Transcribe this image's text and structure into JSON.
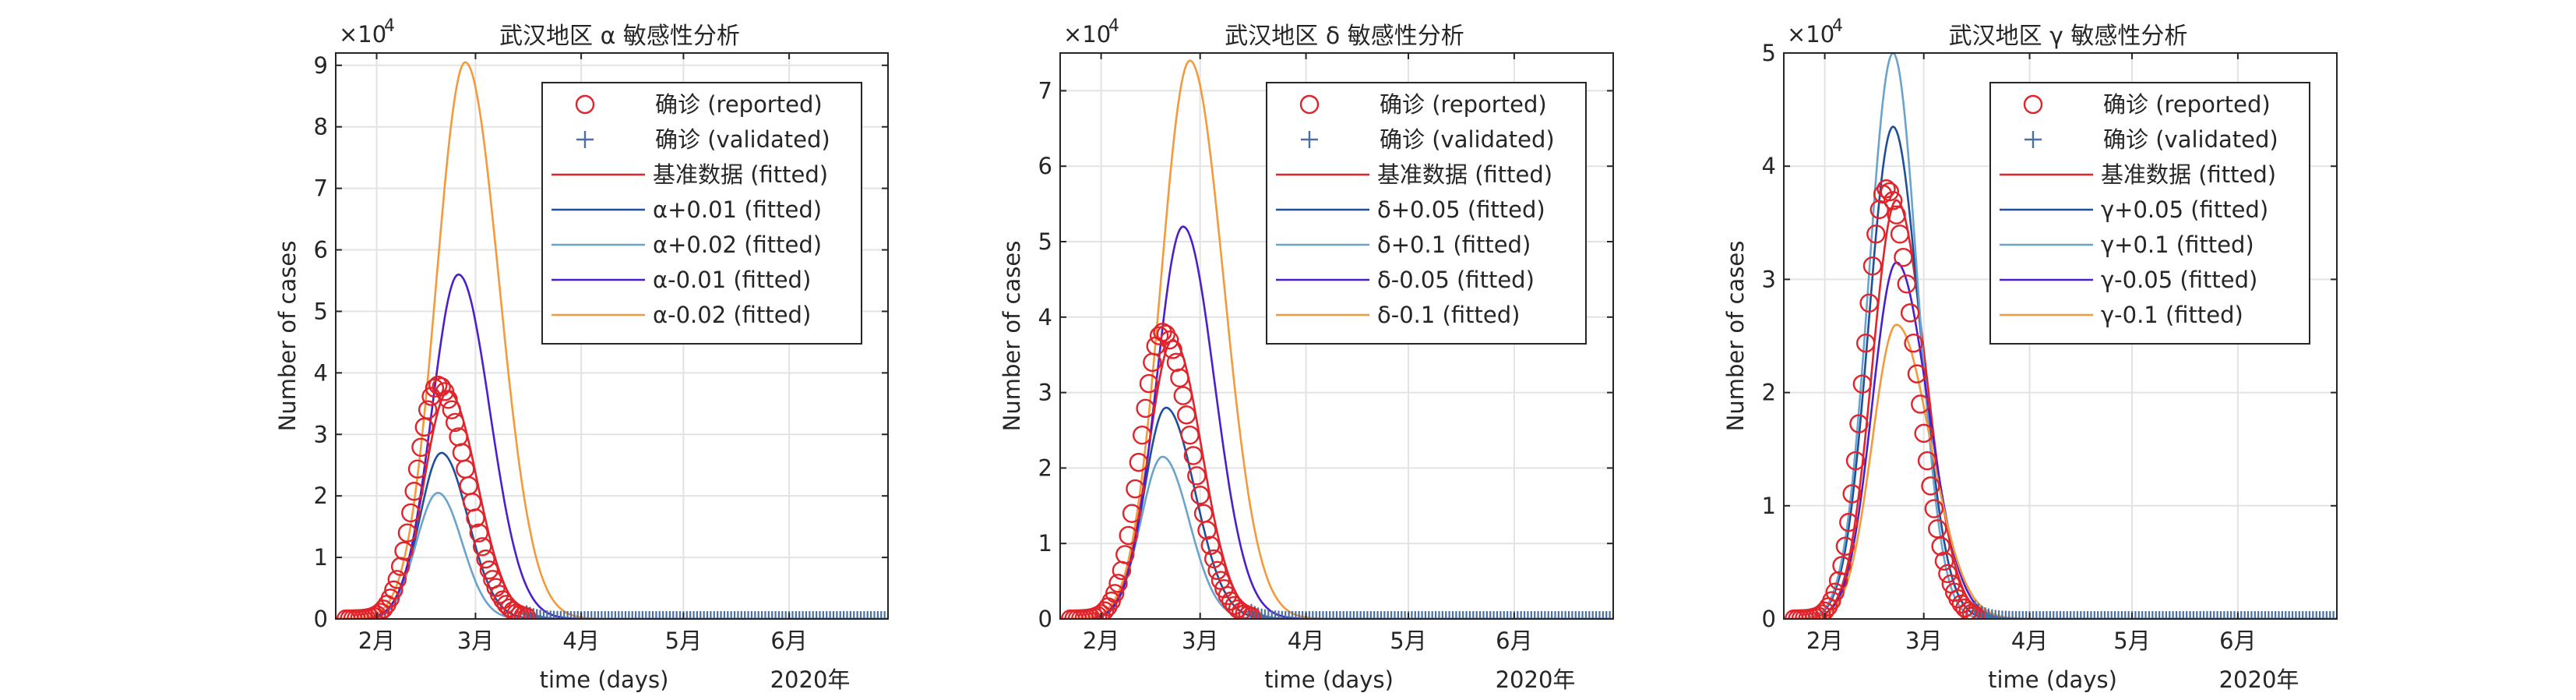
{
  "figure": {
    "year_label": "2020年",
    "xlabel": "time (days)",
    "ylabel": "Number of cases",
    "exponent_label": "×10",
    "exponent_power": "4"
  },
  "chart_data": [
    {
      "type": "line",
      "title": "武汉地区 α 敏感性分析",
      "xlabel": "time (days)",
      "ylabel": "Number of cases",
      "y_multiplier": "×10^4",
      "x_ticks": [
        "2月",
        "3月",
        "4月",
        "5月",
        "6月"
      ],
      "x_tick_dates": [
        "2020-02-01",
        "2020-03-01",
        "2020-04-01",
        "2020-05-01",
        "2020-06-01"
      ],
      "xlim": [
        "2020-01-20",
        "2020-06-30"
      ],
      "ylim": [
        0,
        9.2
      ],
      "yticks": [
        0,
        1,
        2,
        3,
        4,
        5,
        6,
        7,
        8,
        9
      ],
      "grid": true,
      "legend_position": "top-right",
      "legend": [
        {
          "label": "确诊 (reported)",
          "marker": "circle",
          "color": "#e0242b"
        },
        {
          "label": "确诊 (validated)",
          "marker": "plus",
          "color": "#4a6fa0"
        },
        {
          "label": "基准数据 (fitted)",
          "marker": "line",
          "color": "#e0242b"
        },
        {
          "label": "α+0.01 (fitted)",
          "marker": "line",
          "color": "#1f4e9a"
        },
        {
          "label": "α+0.02 (fitted)",
          "marker": "line",
          "color": "#6aa3cc"
        },
        {
          "label": "α-0.01 (fitted)",
          "marker": "line",
          "color": "#4b1fcc"
        },
        {
          "label": "α-0.02 (fitted)",
          "marker": "line",
          "color": "#f39a3c"
        }
      ],
      "series": [
        {
          "name": "基准数据 (fitted)",
          "color": "#e0242b",
          "peak_date": "2020-02-22",
          "peak": 3.7,
          "rise_days": 10,
          "decay_days": 12
        },
        {
          "name": "α+0.01 (fitted)",
          "color": "#1f4e9a",
          "peak_date": "2020-02-20",
          "peak": 2.7,
          "rise_days": 9,
          "decay_days": 11
        },
        {
          "name": "α+0.02 (fitted)",
          "color": "#6aa3cc",
          "peak_date": "2020-02-19",
          "peak": 2.05,
          "rise_days": 9,
          "decay_days": 10
        },
        {
          "name": "α-0.01 (fitted)",
          "color": "#4b1fcc",
          "peak_date": "2020-02-25",
          "peak": 5.6,
          "rise_days": 11,
          "decay_days": 13
        },
        {
          "name": "α-0.02 (fitted)",
          "color": "#f39a3c",
          "peak_date": "2020-02-27",
          "peak": 9.05,
          "rise_days": 12,
          "decay_days": 14
        }
      ],
      "reported": {
        "name": "确诊 (reported)",
        "start": "2020-01-23",
        "end": "2020-03-16",
        "peak_date": "2020-02-19",
        "peak": 3.8,
        "rise_days": 9,
        "decay_days": 12
      },
      "validated": {
        "name": "确诊 (validated)",
        "start": "2020-03-16",
        "end": "2020-06-30",
        "peak_date": "2020-02-22",
        "peak": 3.7,
        "rise_days": 10,
        "decay_days": 12
      }
    },
    {
      "type": "line",
      "title": "武汉地区 δ 敏感性分析",
      "xlabel": "time (days)",
      "ylabel": "Number of cases",
      "y_multiplier": "×10^4",
      "x_ticks": [
        "2月",
        "3月",
        "4月",
        "5月",
        "6月"
      ],
      "x_tick_dates": [
        "2020-02-01",
        "2020-03-01",
        "2020-04-01",
        "2020-05-01",
        "2020-06-01"
      ],
      "xlim": [
        "2020-01-20",
        "2020-06-30"
      ],
      "ylim": [
        0,
        7.5
      ],
      "yticks": [
        0,
        1,
        2,
        3,
        4,
        5,
        6,
        7
      ],
      "grid": true,
      "legend_position": "top-right",
      "legend": [
        {
          "label": "确诊 (reported)",
          "marker": "circle",
          "color": "#e0242b"
        },
        {
          "label": "确诊 (validated)",
          "marker": "plus",
          "color": "#4a6fa0"
        },
        {
          "label": "基准数据 (fitted)",
          "marker": "line",
          "color": "#e0242b"
        },
        {
          "label": "δ+0.05 (fitted)",
          "marker": "line",
          "color": "#1f4e9a"
        },
        {
          "label": "δ+0.1 (fitted)",
          "marker": "line",
          "color": "#6aa3cc"
        },
        {
          "label": "δ-0.05 (fitted)",
          "marker": "line",
          "color": "#4b1fcc"
        },
        {
          "label": "δ-0.1 (fitted)",
          "marker": "line",
          "color": "#f39a3c"
        }
      ],
      "series": [
        {
          "name": "基准数据 (fitted)",
          "color": "#e0242b",
          "peak_date": "2020-02-22",
          "peak": 3.7,
          "rise_days": 10,
          "decay_days": 12
        },
        {
          "name": "δ+0.05 (fitted)",
          "color": "#1f4e9a",
          "peak_date": "2020-02-20",
          "peak": 2.8,
          "rise_days": 9,
          "decay_days": 12
        },
        {
          "name": "δ+0.1 (fitted)",
          "color": "#6aa3cc",
          "peak_date": "2020-02-19",
          "peak": 2.15,
          "rise_days": 9,
          "decay_days": 11
        },
        {
          "name": "δ-0.05 (fitted)",
          "color": "#4b1fcc",
          "peak_date": "2020-02-25",
          "peak": 5.2,
          "rise_days": 11,
          "decay_days": 13
        },
        {
          "name": "δ-0.1 (fitted)",
          "color": "#f39a3c",
          "peak_date": "2020-02-27",
          "peak": 7.4,
          "rise_days": 12,
          "decay_days": 14
        }
      ],
      "reported": {
        "name": "确诊 (reported)",
        "start": "2020-01-23",
        "end": "2020-03-16",
        "peak_date": "2020-02-19",
        "peak": 3.8,
        "rise_days": 9,
        "decay_days": 12
      },
      "validated": {
        "name": "确诊 (validated)",
        "start": "2020-03-16",
        "end": "2020-06-30",
        "peak_date": "2020-02-22",
        "peak": 3.7,
        "rise_days": 10,
        "decay_days": 12
      }
    },
    {
      "type": "line",
      "title": "武汉地区 γ 敏感性分析",
      "xlabel": "time (days)",
      "ylabel": "Number of cases",
      "y_multiplier": "×10^4",
      "x_ticks": [
        "2月",
        "3月",
        "4月",
        "5月",
        "6月"
      ],
      "x_tick_dates": [
        "2020-02-01",
        "2020-03-01",
        "2020-04-01",
        "2020-05-01",
        "2020-06-01"
      ],
      "xlim": [
        "2020-01-20",
        "2020-06-30"
      ],
      "ylim": [
        0,
        5
      ],
      "yticks": [
        0,
        1,
        2,
        3,
        4,
        5
      ],
      "grid": true,
      "legend_position": "top-right",
      "legend": [
        {
          "label": "确诊 (reported)",
          "marker": "circle",
          "color": "#e0242b"
        },
        {
          "label": "确诊 (validated)",
          "marker": "plus",
          "color": "#4a6fa0"
        },
        {
          "label": "基准数据 (fitted)",
          "marker": "line",
          "color": "#e0242b"
        },
        {
          "label": "γ+0.05 (fitted)",
          "marker": "line",
          "color": "#1f4e9a"
        },
        {
          "label": "γ+0.1 (fitted)",
          "marker": "line",
          "color": "#6aa3cc"
        },
        {
          "label": "γ-0.05 (fitted)",
          "marker": "line",
          "color": "#4b1fcc"
        },
        {
          "label": "γ-0.1 (fitted)",
          "marker": "line",
          "color": "#f39a3c"
        }
      ],
      "series": [
        {
          "name": "基准数据 (fitted)",
          "color": "#e0242b",
          "peak_date": "2020-02-22",
          "peak": 3.7,
          "rise_days": 10,
          "decay_days": 12
        },
        {
          "name": "γ+0.05 (fitted)",
          "color": "#1f4e9a",
          "peak_date": "2020-02-21",
          "peak": 4.35,
          "rise_days": 10,
          "decay_days": 11
        },
        {
          "name": "γ+0.1 (fitted)",
          "color": "#6aa3cc",
          "peak_date": "2020-02-21",
          "peak": 5.0,
          "rise_days": 10,
          "decay_days": 10
        },
        {
          "name": "γ-0.05 (fitted)",
          "color": "#4b1fcc",
          "peak_date": "2020-02-22",
          "peak": 3.15,
          "rise_days": 10,
          "decay_days": 13
        },
        {
          "name": "γ-0.1 (fitted)",
          "color": "#f39a3c",
          "peak_date": "2020-02-22",
          "peak": 2.6,
          "rise_days": 10,
          "decay_days": 14
        }
      ],
      "reported": {
        "name": "确诊 (reported)",
        "start": "2020-01-23",
        "end": "2020-03-16",
        "peak_date": "2020-02-19",
        "peak": 3.8,
        "rise_days": 9,
        "decay_days": 12
      },
      "validated": {
        "name": "确诊 (validated)",
        "start": "2020-03-16",
        "end": "2020-06-30",
        "peak_date": "2020-02-22",
        "peak": 3.7,
        "rise_days": 10,
        "decay_days": 12
      }
    }
  ]
}
